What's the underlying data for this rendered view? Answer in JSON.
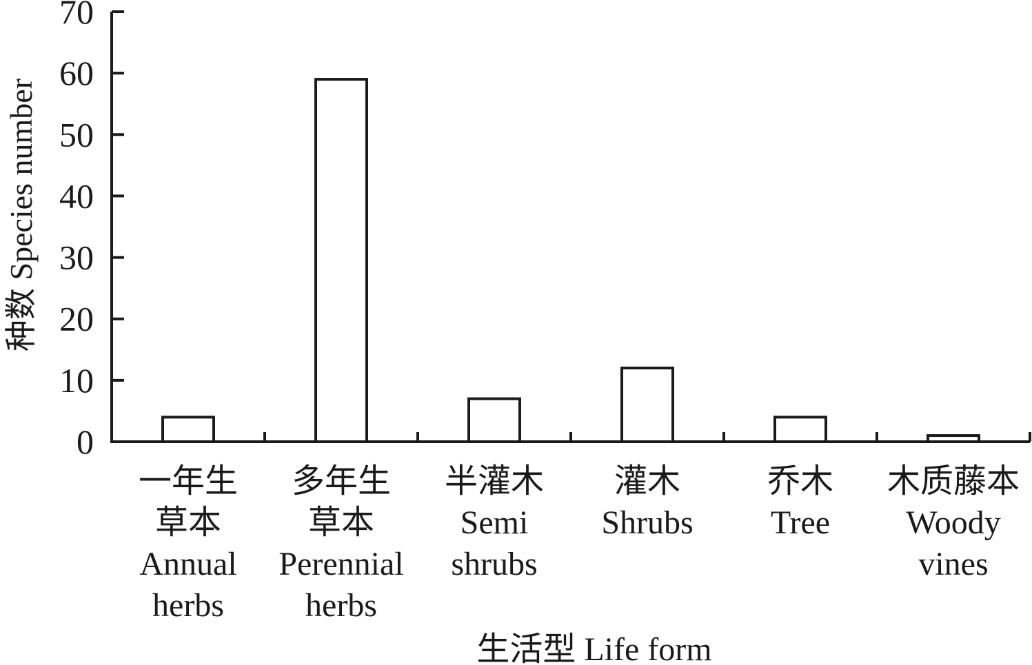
{
  "chart_data": {
    "type": "bar",
    "title": "",
    "xlabel": "生活型 Life form",
    "ylabel": "种数 Species number",
    "ylim": [
      0,
      70
    ],
    "yticks": [
      "0",
      "10",
      "20",
      "30",
      "40",
      "50",
      "60",
      "70"
    ],
    "grid": false,
    "categories": [
      {
        "zh": [
          "一年生",
          "草本"
        ],
        "en": [
          "Annual",
          "herbs"
        ]
      },
      {
        "zh": [
          "多年生",
          "草本"
        ],
        "en": [
          "Perennial",
          "herbs"
        ]
      },
      {
        "zh": [
          "半灌木"
        ],
        "en": [
          "Semi",
          "shrubs"
        ]
      },
      {
        "zh": [
          "灌木"
        ],
        "en": [
          "Shrubs"
        ]
      },
      {
        "zh": [
          "乔木"
        ],
        "en": [
          "Tree"
        ]
      },
      {
        "zh": [
          "木质藤本"
        ],
        "en": [
          "Woody",
          "vines"
        ]
      }
    ],
    "values": [
      4,
      59,
      7,
      12,
      4,
      1
    ],
    "colors": {
      "bar_fill": "#ffffff",
      "bar_stroke": "#1a1a1a",
      "axis": "#1a1a1a"
    }
  }
}
